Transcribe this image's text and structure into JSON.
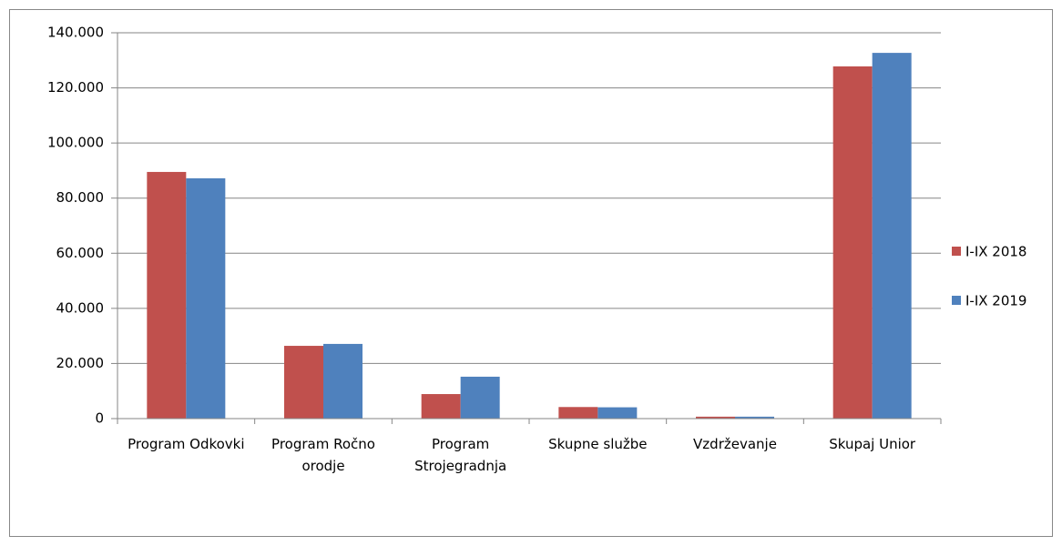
{
  "chart_data": {
    "type": "bar",
    "categories": [
      "Program Odkovki",
      "Program Ročno orodje",
      "Program Strojegradnja",
      "Skupne službe",
      "Vzdrževanje",
      "Skupaj Unior"
    ],
    "series": [
      {
        "name": "I-IX 2018",
        "color": "#c0504d",
        "values": [
          89500,
          26400,
          8900,
          4200,
          700,
          127800
        ]
      },
      {
        "name": "I-IX 2019",
        "color": "#4f81bd",
        "values": [
          87200,
          27100,
          15200,
          4100,
          700,
          132700
        ]
      }
    ],
    "ylim": [
      0,
      140000
    ],
    "yticks": [
      0,
      {
        "value": 20000,
        "label": "20.000"
      },
      {
        "value": 40000,
        "label": "40.000"
      },
      {
        "value": 60000,
        "label": "60.000"
      },
      {
        "value": 80000,
        "label": "80.000"
      },
      {
        "value": 100000,
        "label": "100.000"
      },
      {
        "value": 120000,
        "label": "120.000"
      },
      {
        "value": 140000,
        "label": "140.000"
      }
    ],
    "grid": true,
    "legend": "right"
  }
}
